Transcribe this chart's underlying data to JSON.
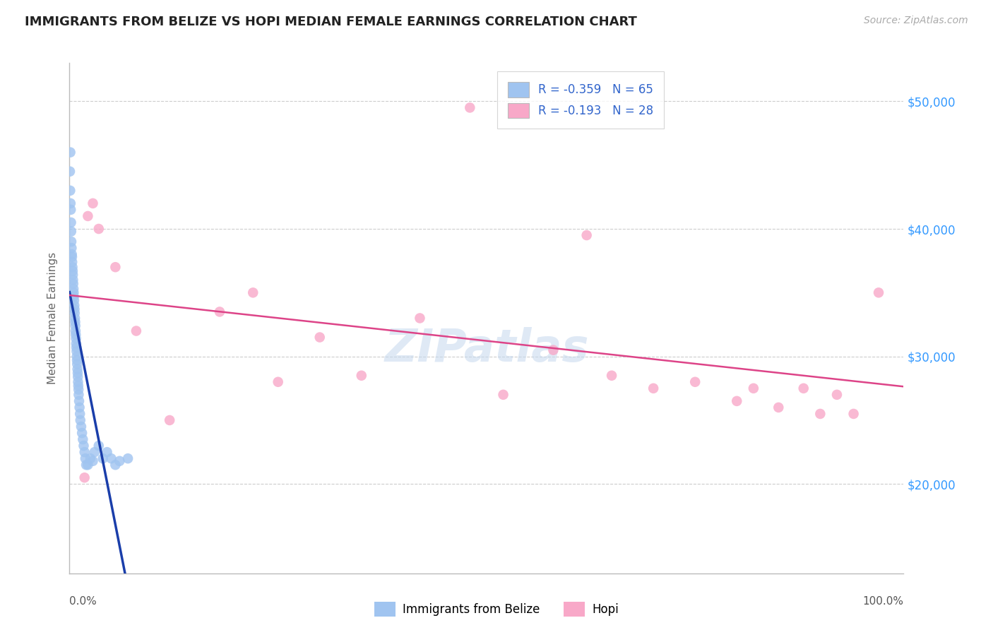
{
  "title": "IMMIGRANTS FROM BELIZE VS HOPI MEDIAN FEMALE EARNINGS CORRELATION CHART",
  "source": "Source: ZipAtlas.com",
  "ylabel": "Median Female Earnings",
  "y_ticks": [
    20000,
    30000,
    40000,
    50000
  ],
  "y_tick_labels": [
    "$20,000",
    "$30,000",
    "$40,000",
    "$50,000"
  ],
  "xlim": [
    0,
    100
  ],
  "ylim": [
    13000,
    53000
  ],
  "belize_R": -0.359,
  "belize_N": 65,
  "hopi_R": -0.193,
  "hopi_N": 28,
  "belize_color": "#a0c4f0",
  "hopi_color": "#f8a8c8",
  "belize_line_color": "#1a3eaa",
  "hopi_line_color": "#dd4488",
  "watermark_text": "ZIPatlas",
  "belize_x": [
    0.05,
    0.08,
    0.1,
    0.12,
    0.15,
    0.18,
    0.2,
    0.22,
    0.25,
    0.28,
    0.3,
    0.32,
    0.35,
    0.38,
    0.4,
    0.42,
    0.45,
    0.48,
    0.5,
    0.52,
    0.55,
    0.58,
    0.6,
    0.62,
    0.65,
    0.68,
    0.7,
    0.72,
    0.75,
    0.78,
    0.8,
    0.82,
    0.85,
    0.88,
    0.9,
    0.92,
    0.95,
    0.98,
    1.0,
    1.02,
    1.05,
    1.08,
    1.1,
    1.15,
    1.2,
    1.25,
    1.3,
    1.4,
    1.5,
    1.6,
    1.7,
    1.8,
    1.9,
    2.0,
    2.2,
    2.5,
    2.8,
    3.0,
    3.5,
    4.0,
    4.5,
    5.0,
    5.5,
    6.0,
    7.0
  ],
  "belize_y": [
    44500,
    43000,
    46000,
    42000,
    41500,
    40500,
    39800,
    39000,
    38500,
    38000,
    37800,
    37400,
    37000,
    36700,
    36400,
    36000,
    35700,
    35300,
    35000,
    34700,
    34400,
    34000,
    33700,
    33400,
    33000,
    32700,
    32400,
    32000,
    31700,
    31400,
    31000,
    30700,
    30400,
    30000,
    29700,
    29400,
    29000,
    28700,
    28400,
    28000,
    27700,
    27400,
    27000,
    26500,
    26000,
    25500,
    25000,
    24500,
    24000,
    23500,
    23000,
    22500,
    22000,
    21500,
    21500,
    22000,
    21800,
    22500,
    23000,
    22000,
    22500,
    22000,
    21500,
    21800,
    22000
  ],
  "hopi_x": [
    1.8,
    2.2,
    2.8,
    3.5,
    5.5,
    8.0,
    12.0,
    18.0,
    22.0,
    25.0,
    30.0,
    35.0,
    42.0,
    48.0,
    52.0,
    58.0,
    62.0,
    65.0,
    70.0,
    75.0,
    80.0,
    82.0,
    85.0,
    88.0,
    90.0,
    92.0,
    94.0,
    97.0
  ],
  "hopi_y": [
    20500,
    41000,
    42000,
    40000,
    37000,
    32000,
    25000,
    33500,
    35000,
    28000,
    31500,
    28500,
    33000,
    49500,
    27000,
    30500,
    39500,
    28500,
    27500,
    28000,
    26500,
    27500,
    26000,
    27500,
    25500,
    27000,
    25500,
    35000
  ],
  "legend_label_belize": "R = -0.359   N = 65",
  "legend_label_hopi": "R = -0.193   N = 28",
  "bottom_label_belize": "Immigrants from Belize",
  "bottom_label_hopi": "Hopi"
}
